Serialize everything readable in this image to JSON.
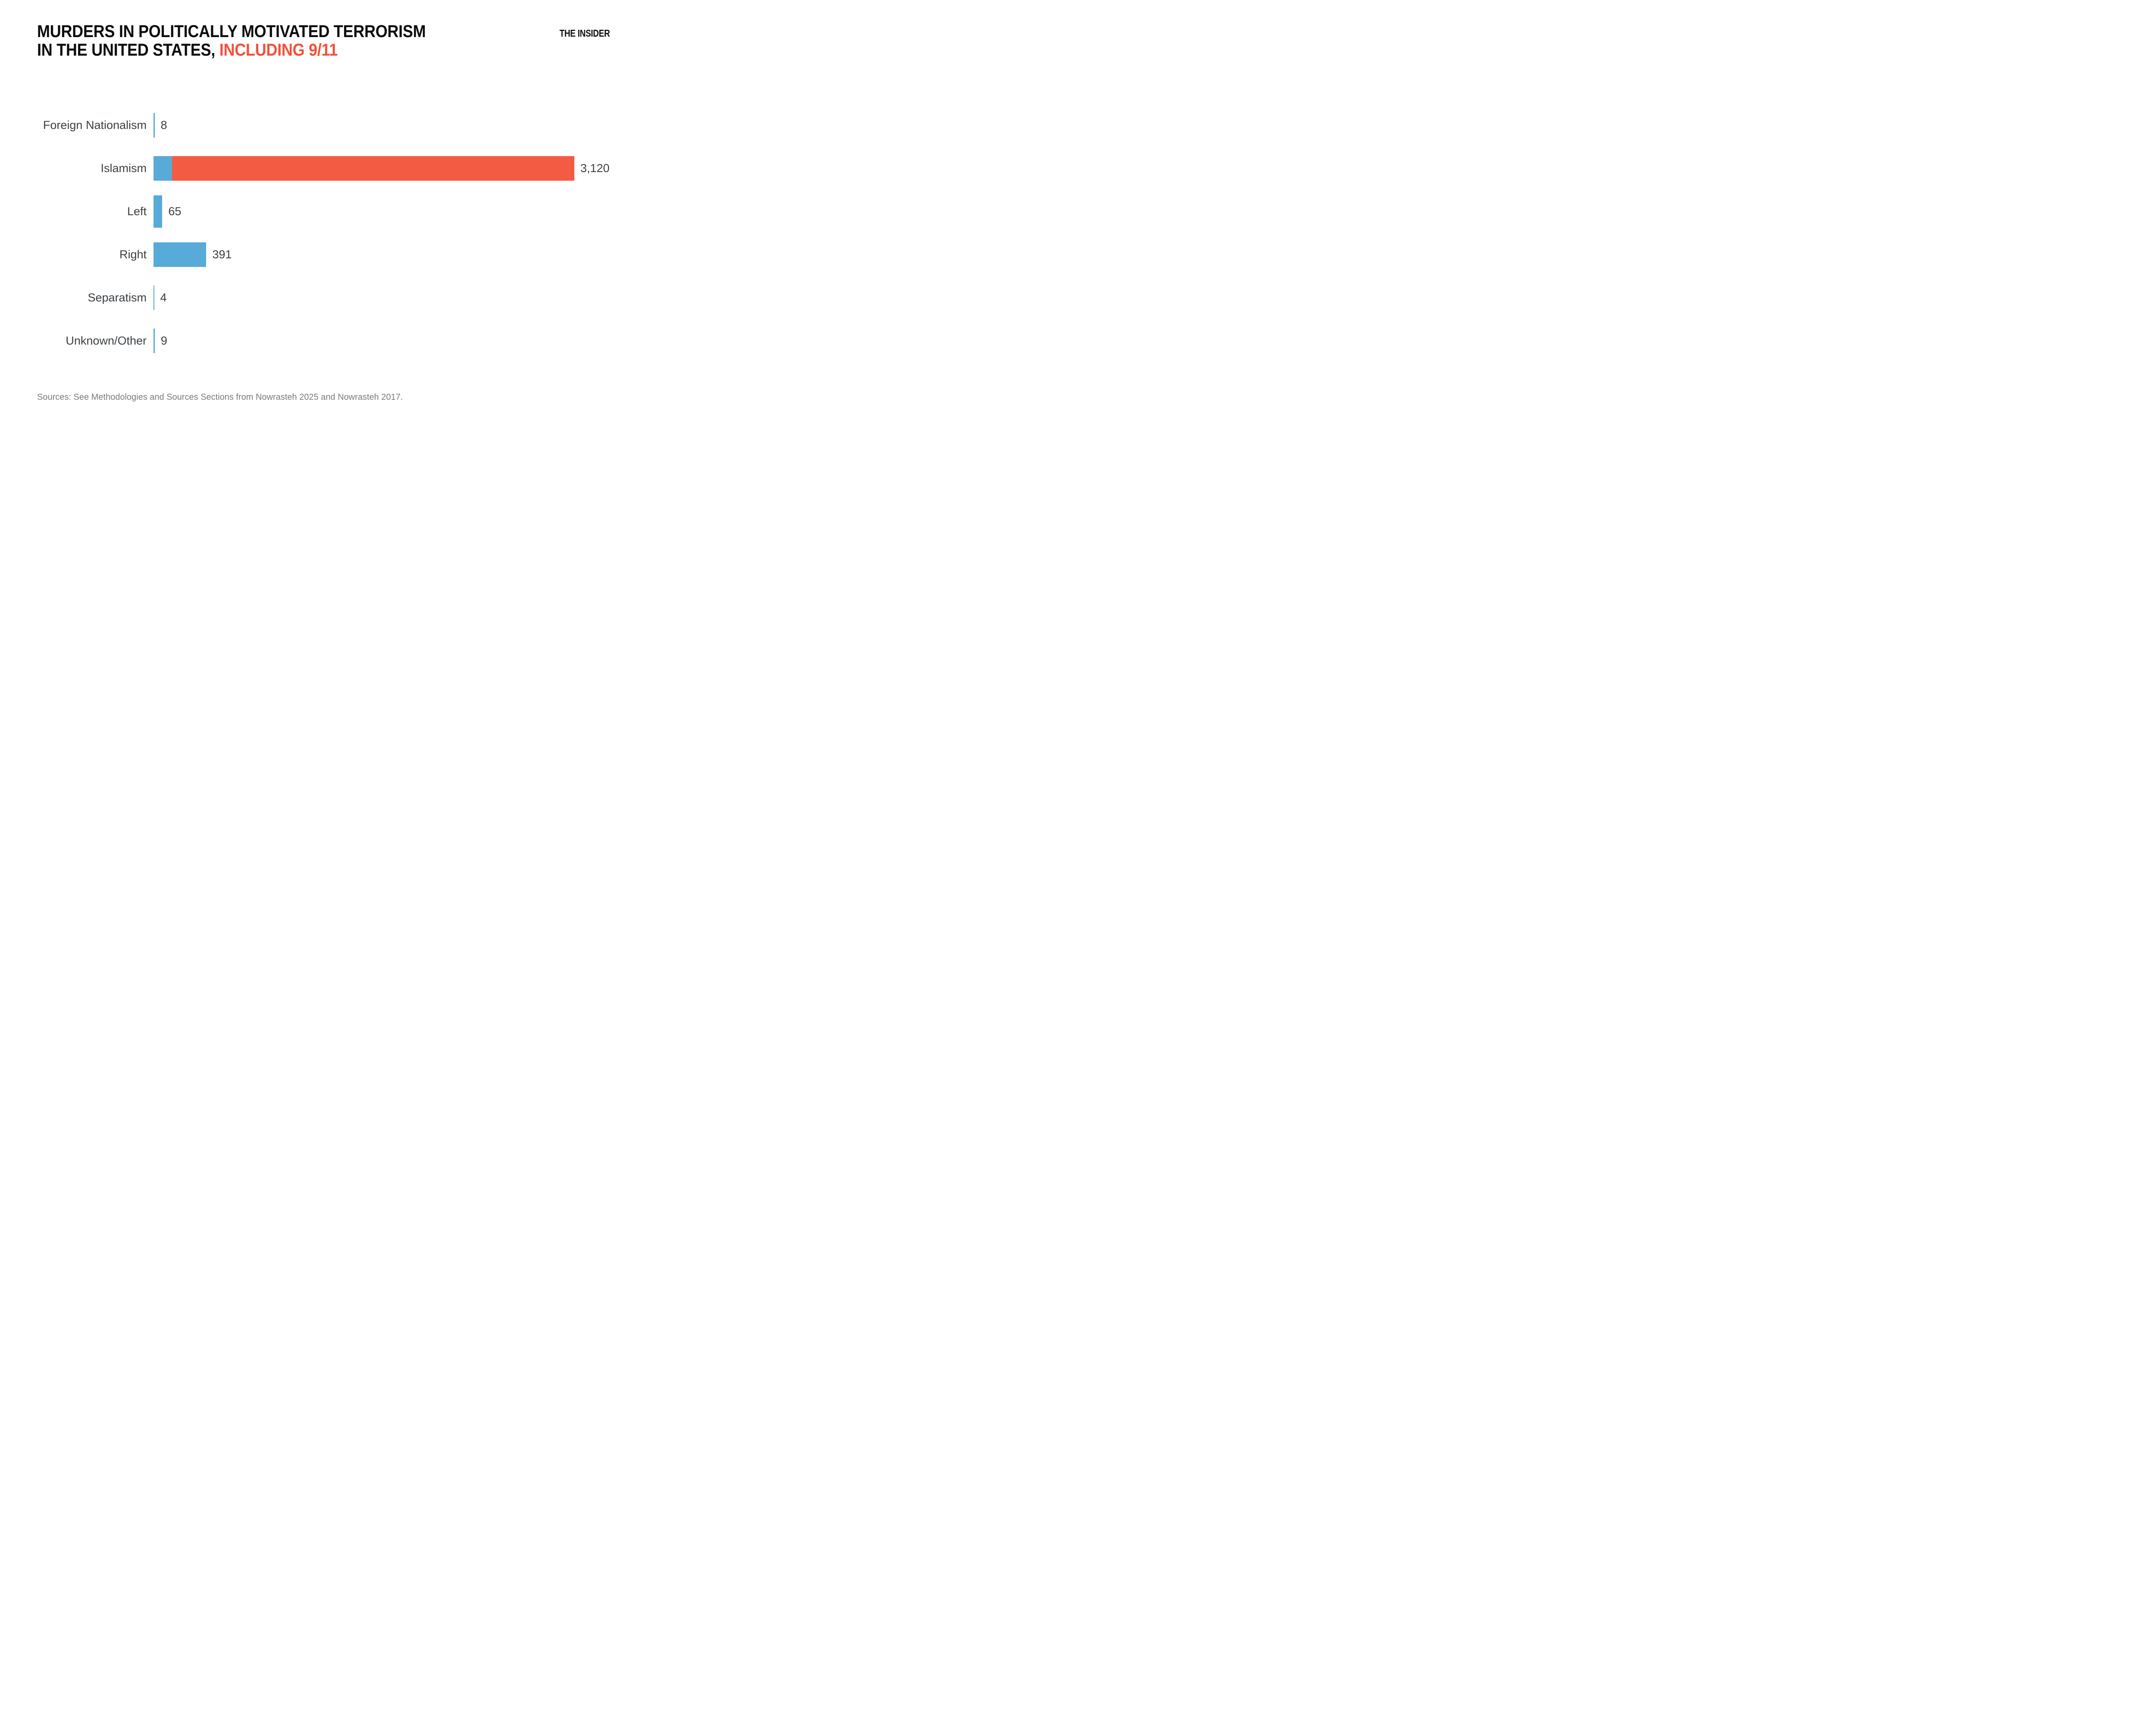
{
  "header": {
    "title_line1": "MURDERS IN POLITICALLY MOTIVATED TERRORISM",
    "title_line2_black": "IN THE UNITED STATES, ",
    "title_line2_red": "INCLUDING 9/11",
    "brand": "THE INSIDER"
  },
  "chart_data": {
    "type": "bar",
    "orientation": "horizontal",
    "title": "MURDERS IN POLITICALLY MOTIVATED TERRORISM IN THE UNITED STATES, INCLUDING 9/11",
    "categories": [
      "Foreign Nationalism",
      "Islamism",
      "Left",
      "Right",
      "Separatism",
      "Unknown/Other"
    ],
    "values": [
      8,
      3120,
      65,
      391,
      4,
      9
    ],
    "value_labels": [
      "8",
      "3,120",
      "65",
      "391",
      "4",
      "9"
    ],
    "xlim": [
      0,
      3120
    ],
    "grid": false,
    "legend": false,
    "bar_color": "#58aad8",
    "highlight_color": "#f45b43",
    "islamism_segments": [
      {
        "value": 137,
        "color": "#58aad8"
      },
      {
        "value": 2983,
        "color": "#f45b43"
      }
    ]
  },
  "footer": {
    "sources": "Sources: See Methodologies and Sources Sections from Nowrasteh 2025 and Nowrasteh 2017."
  },
  "colors": {
    "title_red": "#f4503a",
    "bar_blue": "#58aad8",
    "bar_red": "#f45b43",
    "text_dark": "#3b4044",
    "text_gray": "#7b7b7b",
    "background": "#ffffff"
  }
}
